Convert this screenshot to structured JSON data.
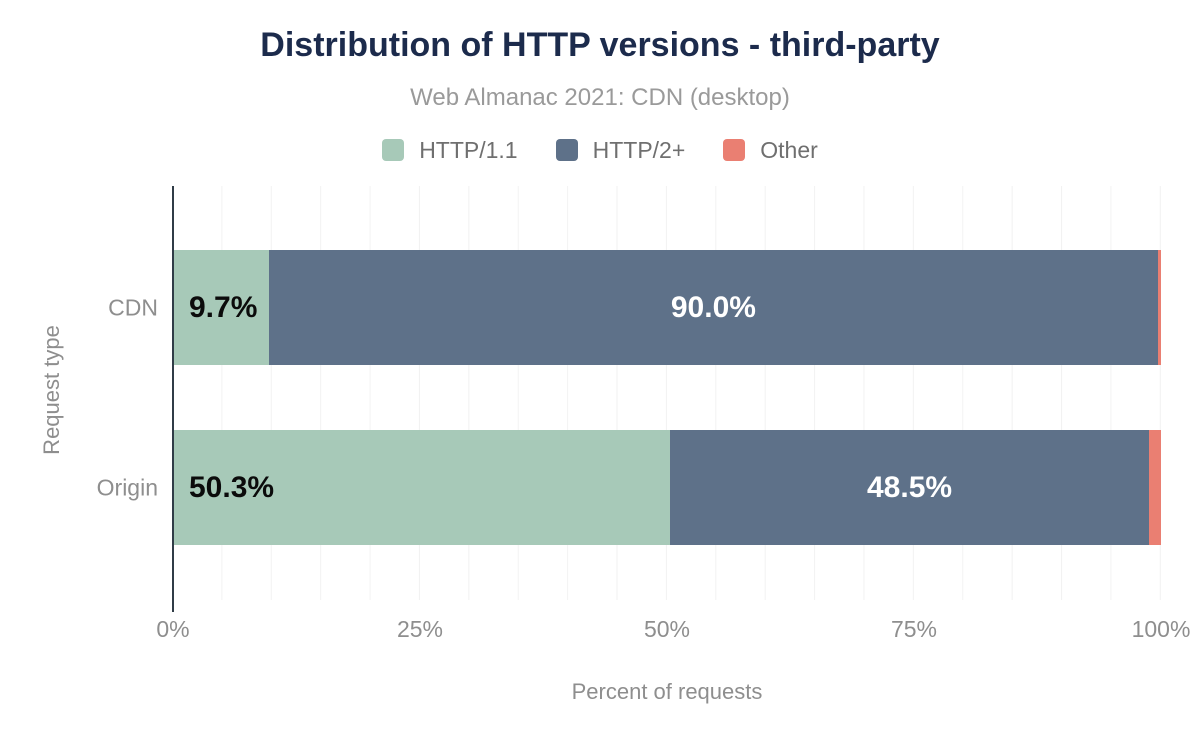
{
  "header": {
    "title": "Distribution of HTTP versions - third-party",
    "subtitle": "Web Almanac 2021: CDN (desktop)"
  },
  "chart_data": {
    "type": "bar",
    "variant": "horizontal-stacked",
    "title": "Distribution of HTTP versions - third-party",
    "subtitle": "Web Almanac 2021: CDN (desktop)",
    "categories": [
      "CDN",
      "Origin"
    ],
    "series": [
      {
        "name": "HTTP/1.1",
        "color": "#a7c9b8",
        "values": [
          9.7,
          50.3
        ],
        "labels": [
          "9.7%",
          "50.3%"
        ],
        "label_color": "#0b0b0b",
        "label_align": "left"
      },
      {
        "name": "HTTP/2+",
        "color": "#5e7189",
        "values": [
          90.0,
          48.5
        ],
        "labels": [
          "90.0%",
          "48.5%"
        ],
        "label_color": "#ffffff",
        "label_align": "center"
      },
      {
        "name": "Other",
        "color": "#ea7f72",
        "values": [
          0.3,
          1.2
        ],
        "labels": [
          "",
          ""
        ],
        "label_color": "#ffffff",
        "label_align": "center"
      }
    ],
    "xlabel": "Percent of requests",
    "ylabel": "Request type",
    "x_ticks": [
      "0%",
      "25%",
      "50%",
      "75%",
      "100%"
    ],
    "xlim": [
      0,
      100
    ],
    "grid": {
      "vertical_every_percent": 5,
      "color": "#f2f2f2"
    },
    "legend_position": "top"
  },
  "colors": {
    "title": "#1c2b4c",
    "subtitle": "#9a9a9a",
    "axis_text": "#8e8e8e",
    "legend_text": "#6f6f6f",
    "axis_line": "#303c47",
    "background": "#ffffff",
    "grid": "#f2f2f2"
  }
}
